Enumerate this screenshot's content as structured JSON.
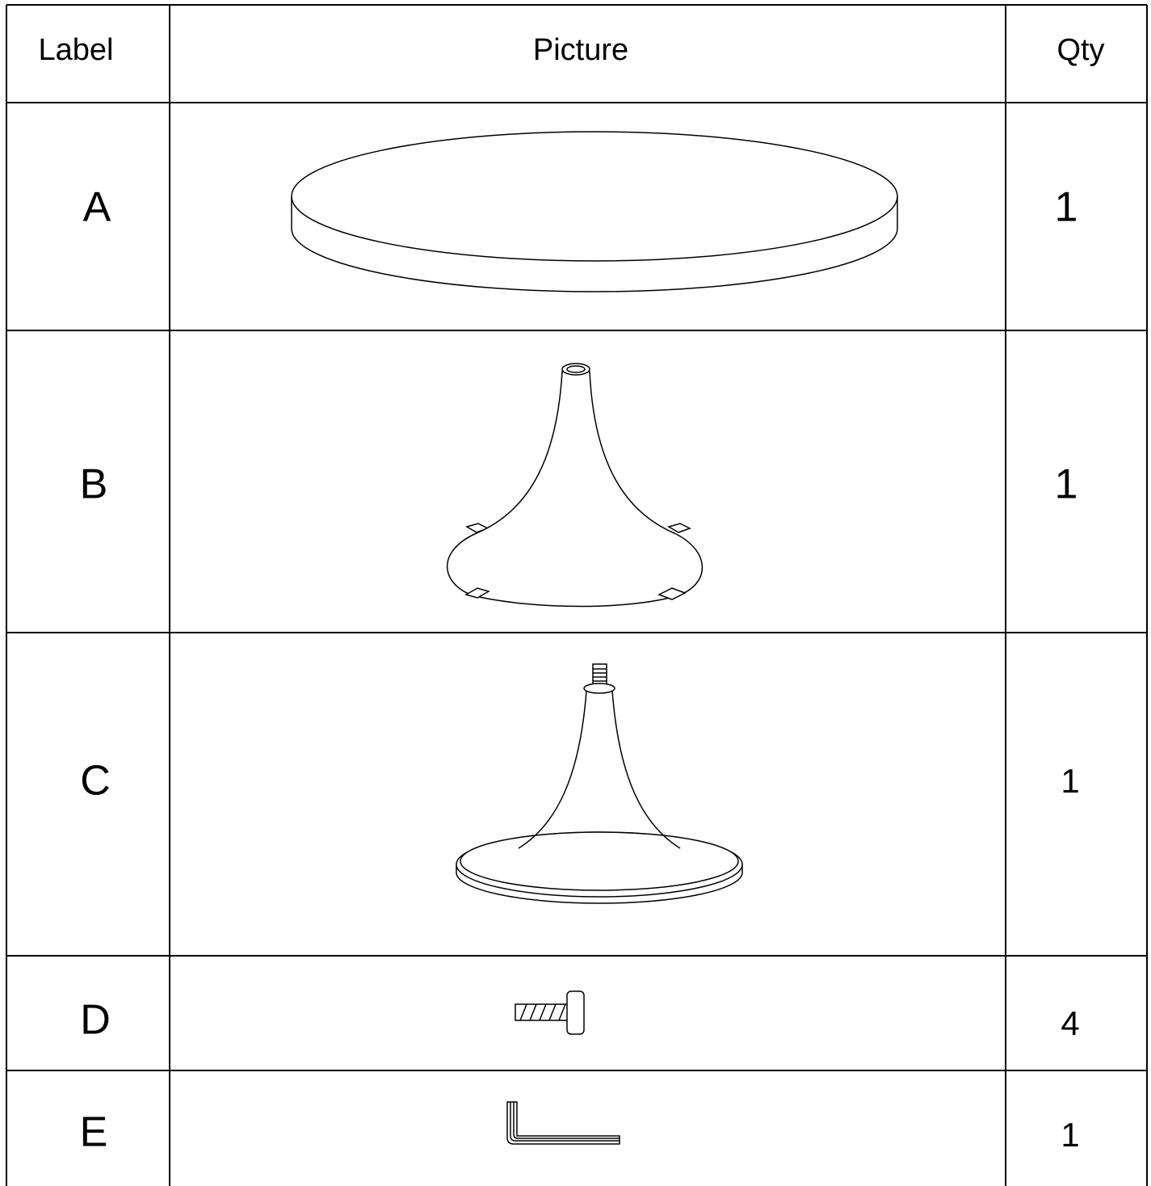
{
  "table": {
    "header": [
      "Label",
      "Picture",
      "Qty"
    ],
    "rows": [
      [
        "A",
        1
      ],
      [
        "B",
        1
      ],
      [
        "C",
        1
      ],
      [
        "D",
        4
      ],
      [
        "E",
        1
      ]
    ]
  }
}
